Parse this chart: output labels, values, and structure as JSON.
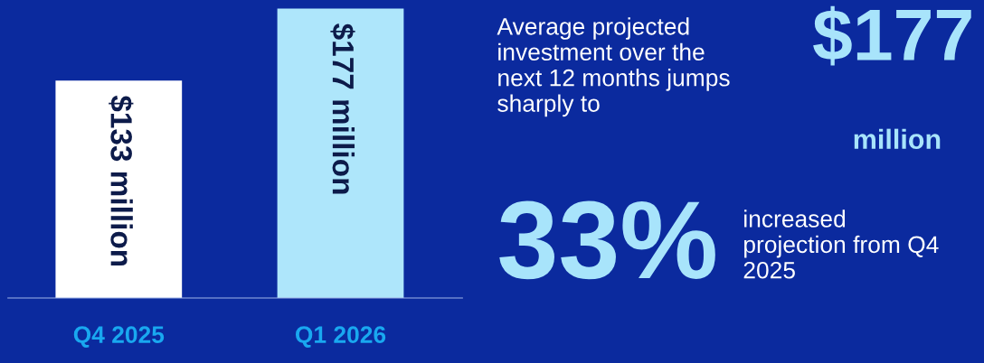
{
  "chart_data": [
    {
      "type": "bar",
      "categories": [
        "Q4 2025",
        "Q1 2026"
      ],
      "values": [
        133,
        177
      ],
      "colors": [
        "#ffffff",
        "#aee6fb"
      ],
      "value_labels": [
        "$133 million",
        "$177 million"
      ],
      "grid": false,
      "legend": false,
      "tick_labels": "x"
    },
    {
      "type": "other",
      "annotations": [
        "Average projected investment over the next 12 months jumps sharply to",
        "$177",
        "million",
        "33%",
        "increased projection from Q4 2025"
      ]
    }
  ]
}
